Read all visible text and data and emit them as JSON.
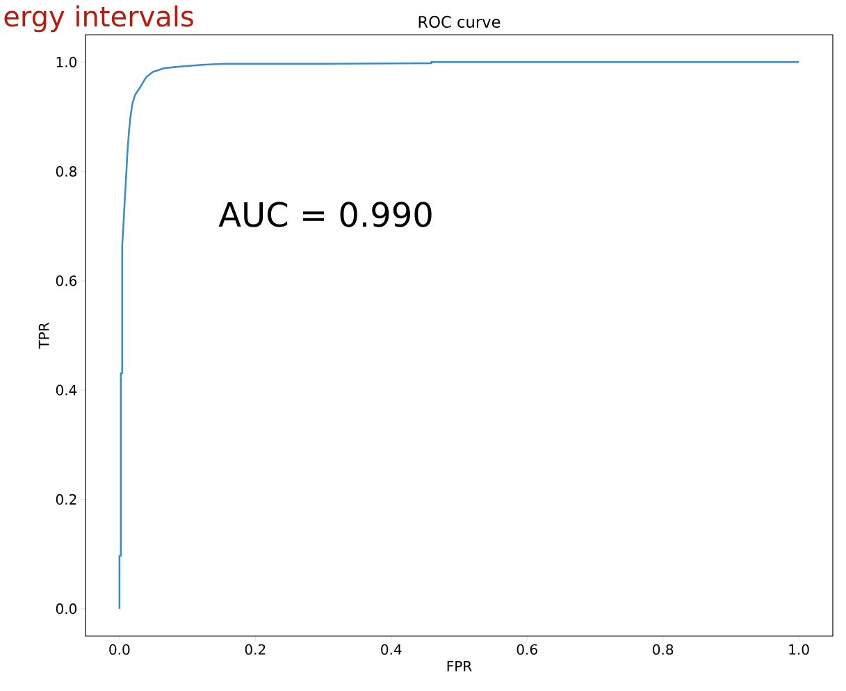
{
  "chart_data": {
    "type": "line",
    "title": "ROC curve",
    "xlabel": "FPR",
    "ylabel": "TPR",
    "annotations": [
      "ergy intervals",
      "AUC = 0.990"
    ],
    "xlim": [
      -0.05,
      1.05
    ],
    "ylim": [
      -0.05,
      1.05
    ],
    "xticks": [
      {
        "value": 0,
        "label": "0.0"
      },
      0.2,
      0.4,
      0.6,
      0.8,
      {
        "value": 1,
        "label": "1.0"
      }
    ],
    "yticks": [
      {
        "value": 0,
        "label": "0.0"
      },
      0.2,
      0.4,
      0.6,
      0.8,
      {
        "value": 1,
        "label": "1.0"
      }
    ],
    "marker": "none",
    "line_style": "solid",
    "series": [
      {
        "color": "#3a8bc8",
        "x": [
          0,
          0,
          0.002,
          0.002,
          0.004,
          0.004,
          0.006,
          0.008,
          0.01,
          0.012,
          0.014,
          0.016,
          0.019,
          0.023,
          0.031,
          0.039,
          0.049,
          0.066,
          0.092,
          0.122,
          0.153,
          0.296,
          0.459,
          0.459,
          1
        ],
        "values": [
          0,
          0.097,
          0.097,
          0.431,
          0.431,
          0.663,
          0.707,
          0.752,
          0.796,
          0.841,
          0.873,
          0.898,
          0.924,
          0.94,
          0.955,
          0.972,
          0.982,
          0.989,
          0.992,
          0.995,
          0.997,
          0.997,
          0.998,
          1,
          1
        ]
      }
    ]
  }
}
